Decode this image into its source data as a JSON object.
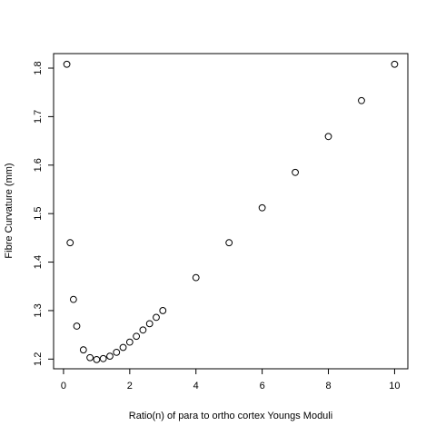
{
  "chart_data": {
    "type": "scatter",
    "title": "",
    "xlabel": "Ratio(n) of para to ortho cortex Youngs Moduli",
    "ylabel": "Fibre Curvature (mm)",
    "xlim": [
      -0.3,
      10.4
    ],
    "ylim": [
      1.18,
      1.83
    ],
    "xticks": [
      0,
      2,
      4,
      6,
      8,
      10
    ],
    "yticks": [
      1.2,
      1.3,
      1.4,
      1.5,
      1.6,
      1.7,
      1.8
    ],
    "grid": false,
    "legend": "none",
    "marker": "open-circle",
    "colors": {
      "marker": "#000000",
      "axis": "#000000",
      "background": "#ffffff"
    },
    "points": [
      {
        "x": 0.1,
        "y": 1.808
      },
      {
        "x": 0.2,
        "y": 1.44
      },
      {
        "x": 0.3,
        "y": 1.323
      },
      {
        "x": 0.4,
        "y": 1.268
      },
      {
        "x": 0.6,
        "y": 1.219
      },
      {
        "x": 0.8,
        "y": 1.203
      },
      {
        "x": 1.0,
        "y": 1.199
      },
      {
        "x": 1.2,
        "y": 1.201
      },
      {
        "x": 1.4,
        "y": 1.206
      },
      {
        "x": 1.6,
        "y": 1.214
      },
      {
        "x": 1.8,
        "y": 1.224
      },
      {
        "x": 2.0,
        "y": 1.235
      },
      {
        "x": 2.2,
        "y": 1.247
      },
      {
        "x": 2.4,
        "y": 1.26
      },
      {
        "x": 2.6,
        "y": 1.273
      },
      {
        "x": 2.8,
        "y": 1.286
      },
      {
        "x": 3.0,
        "y": 1.3
      },
      {
        "x": 4.0,
        "y": 1.368
      },
      {
        "x": 5.0,
        "y": 1.44
      },
      {
        "x": 6.0,
        "y": 1.512
      },
      {
        "x": 7.0,
        "y": 1.585
      },
      {
        "x": 8.0,
        "y": 1.659
      },
      {
        "x": 9.0,
        "y": 1.733
      },
      {
        "x": 10.0,
        "y": 1.808
      }
    ]
  }
}
